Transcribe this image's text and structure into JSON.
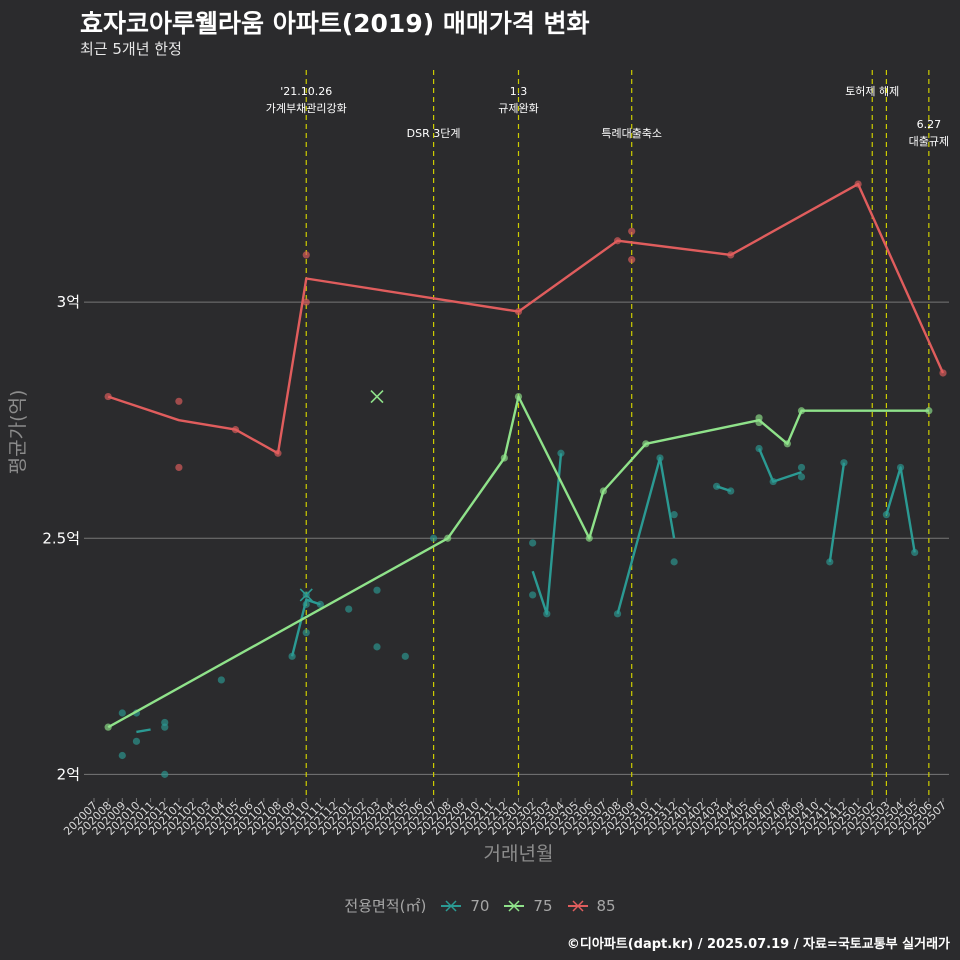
{
  "header": {
    "title": "효자코아루웰라움 아파트(2019) 매매가격 변화",
    "subtitle": "최근 5개년 한정"
  },
  "caption": "©디아파트(dapt.kr) / 2025.07.19 / 자료=국토교통부 실거래가",
  "colors": {
    "background": "#2b2b2d",
    "grid": "#777777",
    "vline": "#cccc00",
    "s70": "#2b9a93",
    "s75": "#8fe28a",
    "s85": "#e05d5d"
  },
  "chart_data": {
    "type": "line",
    "title": "효자코아루웰라움 아파트(2019) 매매가격 변화",
    "xlabel": "거래년월",
    "ylabel": "평균가(억)",
    "ylim": [
      1.95,
      3.5
    ],
    "yticks": [
      2.0,
      2.5,
      3.0
    ],
    "ytick_labels": [
      "2억",
      "2.5억",
      "3억"
    ],
    "grid": true,
    "legend_title": "전용면적(㎡)",
    "legend_position": "bottom",
    "categories": [
      "202007",
      "202008",
      "202009",
      "202010",
      "202011",
      "202012",
      "202101",
      "202102",
      "202103",
      "202104",
      "202105",
      "202106",
      "202107",
      "202108",
      "202109",
      "202110",
      "202111",
      "202112",
      "202201",
      "202202",
      "202203",
      "202204",
      "202205",
      "202206",
      "202207",
      "202208",
      "202209",
      "202210",
      "202211",
      "202212",
      "202301",
      "202302",
      "202303",
      "202304",
      "202305",
      "202306",
      "202307",
      "202308",
      "202309",
      "202310",
      "202311",
      "202312",
      "202401",
      "202402",
      "202403",
      "202404",
      "202405",
      "202406",
      "202407",
      "202408",
      "202409",
      "202410",
      "202411",
      "202412",
      "202501",
      "202502",
      "202503",
      "202504",
      "202505",
      "202506",
      "202507"
    ],
    "events": [
      {
        "month": "202110",
        "label1": "'21.10.26",
        "label2": "가계부채관리강화",
        "level": 1
      },
      {
        "month": "202207",
        "label1": "DSR 3단계",
        "label2": "",
        "level": 2
      },
      {
        "month": "202301",
        "label1": "1.3",
        "label2": "규제완화",
        "level": 1
      },
      {
        "month": "202309",
        "label1": "특례대출축소",
        "label2": "",
        "level": 2
      },
      {
        "month": "202502",
        "label1": "토허제 해제",
        "label2": "",
        "level": 1
      },
      {
        "month": "202503",
        "label1": "",
        "label2": "",
        "level": 1
      },
      {
        "month": "202506",
        "label1": "6.27",
        "label2": "대출규제",
        "level": 3
      }
    ],
    "series": [
      {
        "name": "70",
        "line_segments": [
          [
            [
              "202010",
              2.09
            ],
            [
              "202011",
              2.095
            ]
          ],
          [
            [
              "202109",
              2.25
            ],
            [
              "202110",
              2.37
            ],
            [
              "202111",
              2.36
            ]
          ],
          [
            [
              "202302",
              2.43
            ],
            [
              "202303",
              2.34
            ],
            [
              "202304",
              2.68
            ]
          ],
          [
            [
              "202308",
              2.34
            ],
            [
              "202311",
              2.67
            ],
            [
              "202312",
              2.5
            ]
          ],
          [
            [
              "202403",
              2.61
            ],
            [
              "202404",
              2.6
            ]
          ],
          [
            [
              "202406",
              2.69
            ],
            [
              "202407",
              2.62
            ],
            [
              "202409",
              2.64
            ]
          ],
          [
            [
              "202411",
              2.45
            ],
            [
              "202412",
              2.66
            ]
          ],
          [
            [
              "202503",
              2.55
            ],
            [
              "202504",
              2.65
            ],
            [
              "202505",
              2.47
            ]
          ]
        ],
        "points": [
          [
            "202009",
            2.13
          ],
          [
            "202009",
            2.04
          ],
          [
            "202010",
            2.13
          ],
          [
            "202010",
            2.07
          ],
          [
            "202012",
            2.11
          ],
          [
            "202012",
            2.1
          ],
          [
            "202012",
            2.0
          ],
          [
            "202104",
            2.2
          ],
          [
            "202109",
            2.25
          ],
          [
            "202110",
            2.38
          ],
          [
            "202110",
            2.36
          ],
          [
            "202110",
            2.3
          ],
          [
            "202111",
            2.36
          ],
          [
            "202201",
            2.35
          ],
          [
            "202203",
            2.39
          ],
          [
            "202203",
            2.27
          ],
          [
            "202205",
            2.25
          ],
          [
            "202207",
            2.5
          ],
          [
            "202302",
            2.49
          ],
          [
            "202302",
            2.38
          ],
          [
            "202303",
            2.34
          ],
          [
            "202304",
            2.68
          ],
          [
            "202308",
            2.34
          ],
          [
            "202311",
            2.67
          ],
          [
            "202312",
            2.55
          ],
          [
            "202312",
            2.45
          ],
          [
            "202403",
            2.61
          ],
          [
            "202404",
            2.6
          ],
          [
            "202406",
            2.69
          ],
          [
            "202407",
            2.62
          ],
          [
            "202409",
            2.65
          ],
          [
            "202409",
            2.63
          ],
          [
            "202411",
            2.45
          ],
          [
            "202412",
            2.66
          ],
          [
            "202503",
            2.55
          ],
          [
            "202504",
            2.65
          ],
          [
            "202505",
            2.47
          ]
        ],
        "x_markers": [
          [
            "202110",
            2.38
          ]
        ]
      },
      {
        "name": "75",
        "line_segments": [
          [
            [
              "202008",
              2.1
            ],
            [
              "202208",
              2.5
            ],
            [
              "202212",
              2.67
            ],
            [
              "202301",
              2.8
            ],
            [
              "202306",
              2.5
            ],
            [
              "202307",
              2.6
            ],
            [
              "202310",
              2.7
            ],
            [
              "202406",
              2.75
            ],
            [
              "202408",
              2.7
            ],
            [
              "202409",
              2.77
            ],
            [
              "202506",
              2.77
            ]
          ]
        ],
        "points": [
          [
            "202008",
            2.1
          ],
          [
            "202208",
            2.5
          ],
          [
            "202212",
            2.67
          ],
          [
            "202301",
            2.8
          ],
          [
            "202306",
            2.5
          ],
          [
            "202307",
            2.6
          ],
          [
            "202310",
            2.7
          ],
          [
            "202406",
            2.755
          ],
          [
            "202406",
            2.745
          ],
          [
            "202408",
            2.7
          ],
          [
            "202409",
            2.77
          ],
          [
            "202506",
            2.77
          ]
        ],
        "x_markers": [
          [
            "202203",
            2.8
          ]
        ]
      },
      {
        "name": "85",
        "line_segments": [
          [
            [
              "202008",
              2.8
            ],
            [
              "202101",
              2.75
            ],
            [
              "202105",
              2.73
            ],
            [
              "202108",
              2.68
            ],
            [
              "202110",
              3.05
            ],
            [
              "202301",
              2.98
            ],
            [
              "202308",
              3.13
            ],
            [
              "202404",
              3.1
            ],
            [
              "202501",
              3.25
            ],
            [
              "202507",
              2.85
            ]
          ]
        ],
        "points": [
          [
            "202008",
            2.8
          ],
          [
            "202101",
            2.79
          ],
          [
            "202101",
            2.65
          ],
          [
            "202105",
            2.73
          ],
          [
            "202108",
            2.68
          ],
          [
            "202110",
            3.1
          ],
          [
            "202110",
            3.0
          ],
          [
            "202301",
            2.98
          ],
          [
            "202308",
            3.13
          ],
          [
            "202309",
            3.15
          ],
          [
            "202309",
            3.09
          ],
          [
            "202404",
            3.1
          ],
          [
            "202501",
            3.25
          ],
          [
            "202507",
            2.85
          ]
        ],
        "x_markers": []
      }
    ]
  }
}
